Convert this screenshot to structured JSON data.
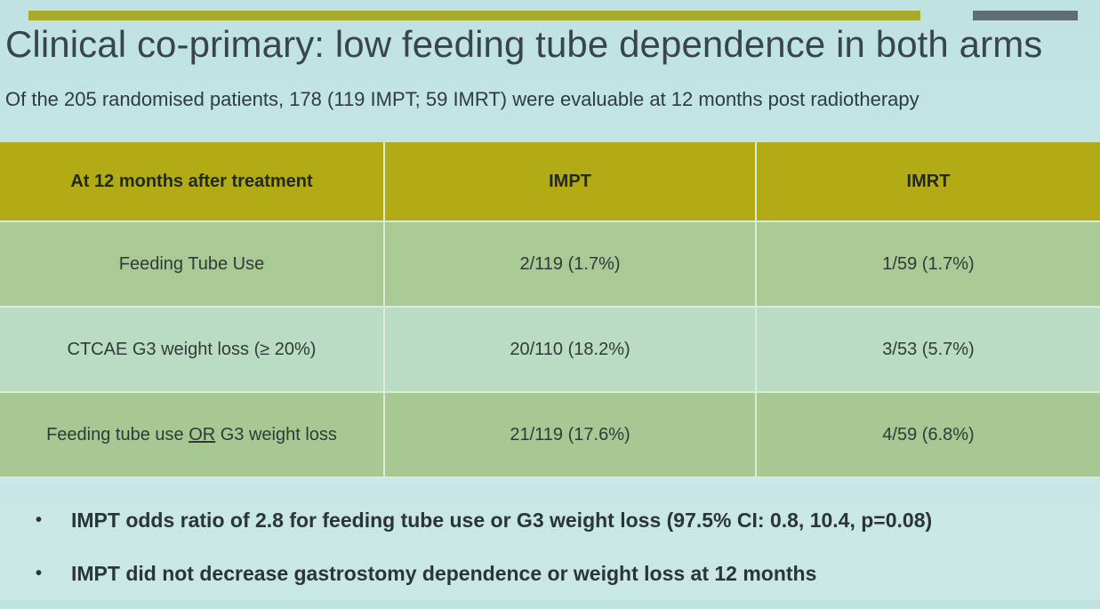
{
  "slide": {
    "title": "Clinical co-primary: low feeding tube dependence in both arms",
    "subtitle": "Of the 205 randomised patients, 178 (119 IMPT; 59 IMRT) were evaluable at 12 months post radiotherapy"
  },
  "table": {
    "headers": [
      "At 12 months after treatment",
      "IMPT",
      "IMRT"
    ],
    "rows": [
      {
        "label_pre": "Feeding Tube Use",
        "label_under": "",
        "label_post": "",
        "impt": "2/119 (1.7%)",
        "imrt": "1/59 (1.7%)"
      },
      {
        "label_pre": "CTCAE G3 weight loss (≥ 20%)",
        "label_under": "",
        "label_post": "",
        "impt": "20/110 (18.2%)",
        "imrt": "3/53 (5.7%)"
      },
      {
        "label_pre": "Feeding tube use ",
        "label_under": "OR",
        "label_post": " G3 weight loss",
        "impt": "21/119 (17.6%)",
        "imrt": "4/59 (6.8%)"
      }
    ]
  },
  "bullets": [
    "IMPT odds ratio of 2.8 for feeding tube use or G3 weight loss (97.5% CI: 0.8, 10.4, p=0.08)",
    "IMPT did not decrease gastrostomy dependence or weight loss at 12 months"
  ],
  "bullet_symbol": "•",
  "colors": {
    "accent_bar": "#a8ab2a",
    "secondary_bar": "#5d6f74",
    "header_fill": "#b3ab16",
    "row_fill_a": "#a9c995",
    "row_fill_b": "#bbdcc4",
    "background": "#c6e6e6"
  }
}
